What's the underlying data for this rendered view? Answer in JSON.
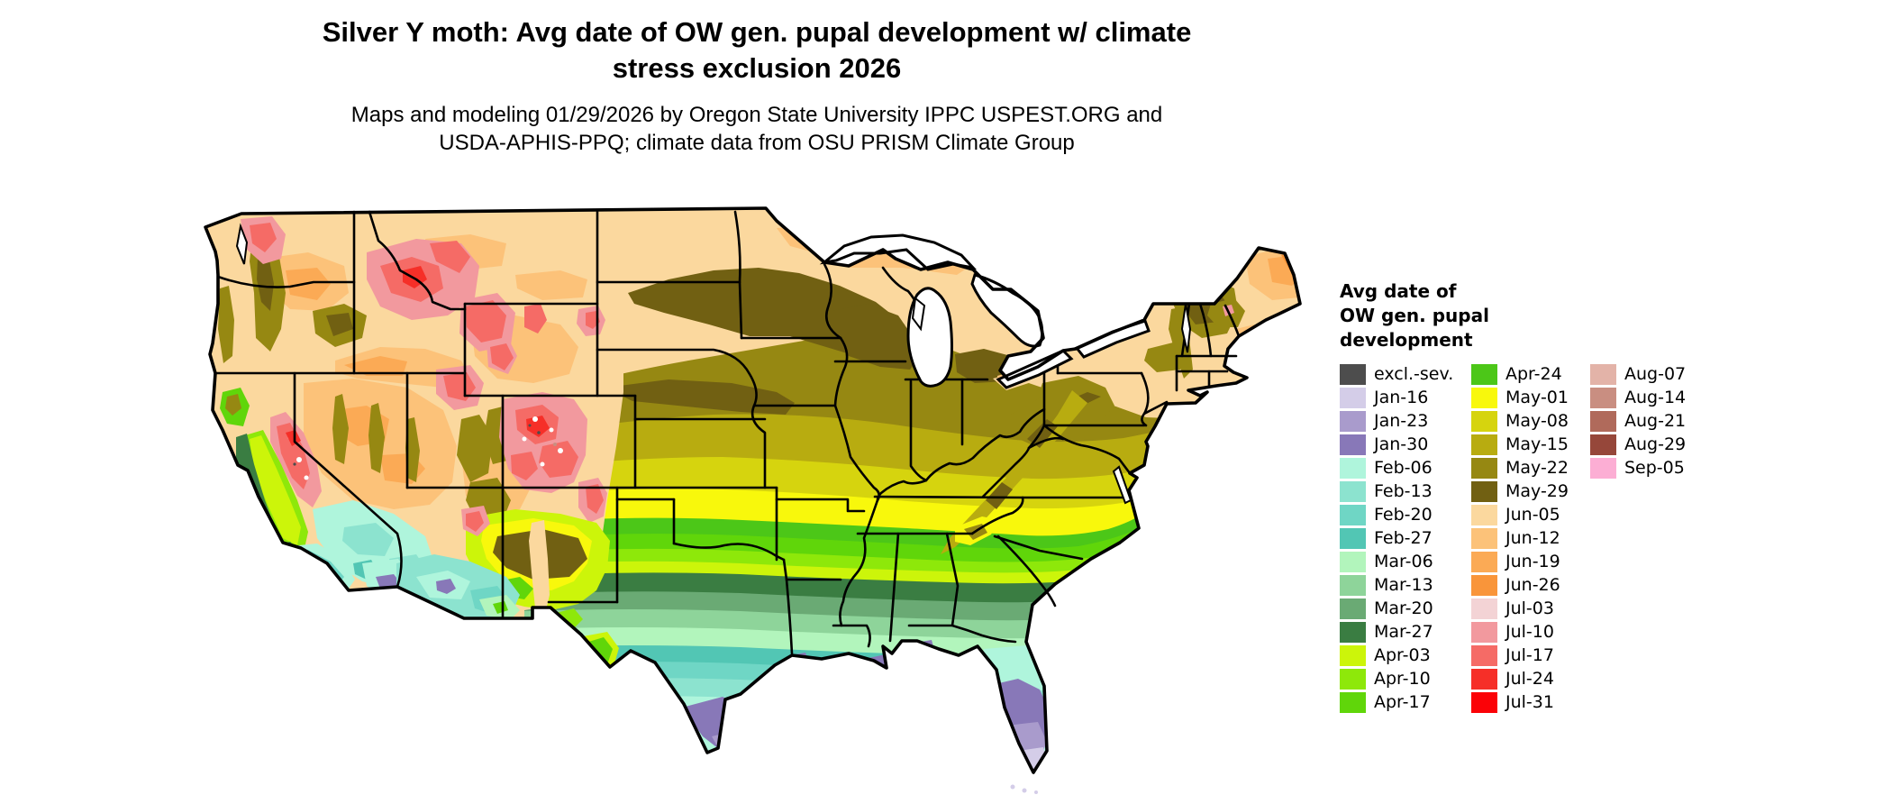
{
  "title": {
    "line1": "Silver Y moth: Avg date of OW gen. pupal development w/ climate",
    "line2": "stress exclusion 2026"
  },
  "subtitle": {
    "line1": "Maps and modeling 01/29/2026 by Oregon State University IPPC USPEST.ORG and",
    "line2": "USDA-APHIS-PPQ; climate data from OSU PRISM Climate Group"
  },
  "legend": {
    "title_lines": [
      "Avg date of",
      "OW gen. pupal",
      "development"
    ],
    "columns": [
      [
        {
          "label": "excl.-sev.",
          "color": "#4d4d4d"
        },
        {
          "label": "Jan-16",
          "color": "#d4cde8"
        },
        {
          "label": "Jan-23",
          "color": "#a99bcc"
        },
        {
          "label": "Jan-30",
          "color": "#8878b8"
        },
        {
          "label": "Feb-06",
          "color": "#aff5dc"
        },
        {
          "label": "Feb-13",
          "color": "#8ce3cf"
        },
        {
          "label": "Feb-20",
          "color": "#6fd6c5"
        },
        {
          "label": "Feb-27",
          "color": "#52c6b4"
        },
        {
          "label": "Mar-06",
          "color": "#b2f5bc"
        },
        {
          "label": "Mar-13",
          "color": "#8ed49a"
        },
        {
          "label": "Mar-20",
          "color": "#6aaa74"
        },
        {
          "label": "Mar-27",
          "color": "#3a7d42"
        },
        {
          "label": "Apr-03",
          "color": "#ccf50a"
        },
        {
          "label": "Apr-10",
          "color": "#8ee80a"
        },
        {
          "label": "Apr-17",
          "color": "#60d60a"
        }
      ],
      [
        {
          "label": "Apr-24",
          "color": "#4cc718"
        },
        {
          "label": "May-01",
          "color": "#f8f80c"
        },
        {
          "label": "May-08",
          "color": "#d6d40e"
        },
        {
          "label": "May-15",
          "color": "#b8ac10"
        },
        {
          "label": "May-22",
          "color": "#968812"
        },
        {
          "label": "May-29",
          "color": "#716012"
        },
        {
          "label": "Jun-05",
          "color": "#fbd89e"
        },
        {
          "label": "Jun-12",
          "color": "#fcc279"
        },
        {
          "label": "Jun-19",
          "color": "#fbaa55"
        },
        {
          "label": "Jun-26",
          "color": "#f9953a"
        },
        {
          "label": "Jul-03",
          "color": "#f3d3d5"
        },
        {
          "label": "Jul-10",
          "color": "#f2999e"
        },
        {
          "label": "Jul-17",
          "color": "#f56b66"
        },
        {
          "label": "Jul-24",
          "color": "#f62f28"
        },
        {
          "label": "Jul-31",
          "color": "#fb0207"
        }
      ],
      [
        {
          "label": "Aug-07",
          "color": "#e3b3a8"
        },
        {
          "label": "Aug-14",
          "color": "#c98e81"
        },
        {
          "label": "Aug-21",
          "color": "#b06a5b"
        },
        {
          "label": "Aug-29",
          "color": "#96473a"
        },
        {
          "label": "Sep-05",
          "color": "#fcaed4"
        }
      ]
    ]
  }
}
